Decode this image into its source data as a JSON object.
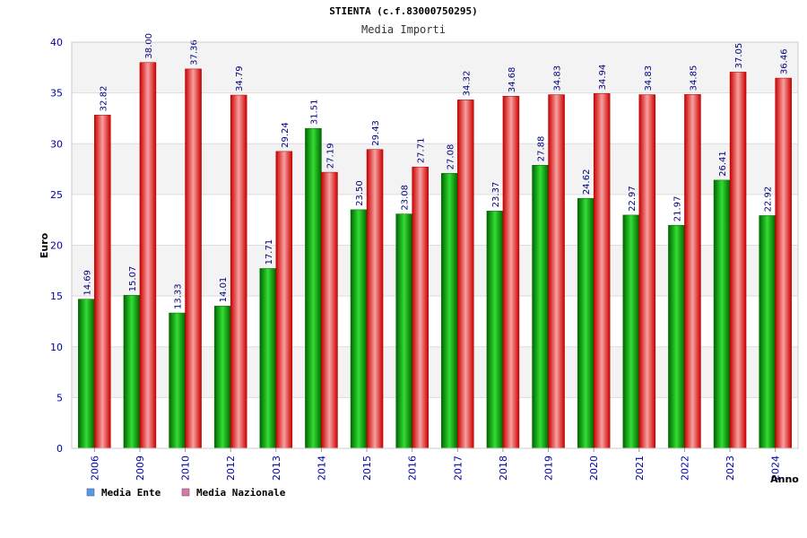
{
  "chart_data": {
    "type": "bar",
    "title": "STIENTA (c.f.83000750295)",
    "subtitle": "Media Importi",
    "ylabel": "Euro",
    "xlabel": "Anno",
    "ylim": [
      0,
      40
    ],
    "yticks": [
      0,
      5,
      10,
      15,
      20,
      25,
      30,
      35,
      40
    ],
    "categories": [
      "2006",
      "2009",
      "2010",
      "2012",
      "2013",
      "2014",
      "2015",
      "2016",
      "2017",
      "2018",
      "2019",
      "2020",
      "2021",
      "2022",
      "2023",
      "2024"
    ],
    "series": [
      {
        "name": "Media Ente",
        "color": "#00aa00",
        "values": [
          14.69,
          15.07,
          13.33,
          14.01,
          17.71,
          31.51,
          23.5,
          23.08,
          27.08,
          23.37,
          27.88,
          24.62,
          22.97,
          21.97,
          26.41,
          22.92
        ],
        "labels": [
          "14.69",
          "15.07",
          "13.33",
          "14.01",
          "17.71",
          "31.51",
          "23.50",
          "23.08",
          "27.08",
          "23.37",
          "27.88",
          "24.62",
          "22.97",
          "21.97",
          "26.41",
          "22.92"
        ]
      },
      {
        "name": "Media Nazionale",
        "color": "#ee0000",
        "values": [
          32.82,
          38.0,
          37.36,
          34.79,
          29.24,
          27.19,
          29.43,
          27.71,
          34.32,
          34.68,
          34.83,
          34.94,
          34.83,
          34.85,
          37.05,
          36.46
        ],
        "labels": [
          "32.82",
          "38.00",
          "37.36",
          "34.79",
          "29.24",
          "27.19",
          "29.43",
          "27.71",
          "34.32",
          "34.68",
          "34.83",
          "34.94",
          "34.83",
          "34.85",
          "37.05",
          "36.46"
        ]
      }
    ],
    "legend": [
      {
        "label": "Media Ente",
        "swatch": "#5599ee"
      },
      {
        "label": "Media Nazionale",
        "swatch": "#dd77aa"
      }
    ],
    "legend_position": "bottom-left",
    "grid": true,
    "band_colors": [
      "#f3f3f3",
      "#ffffff"
    ]
  }
}
